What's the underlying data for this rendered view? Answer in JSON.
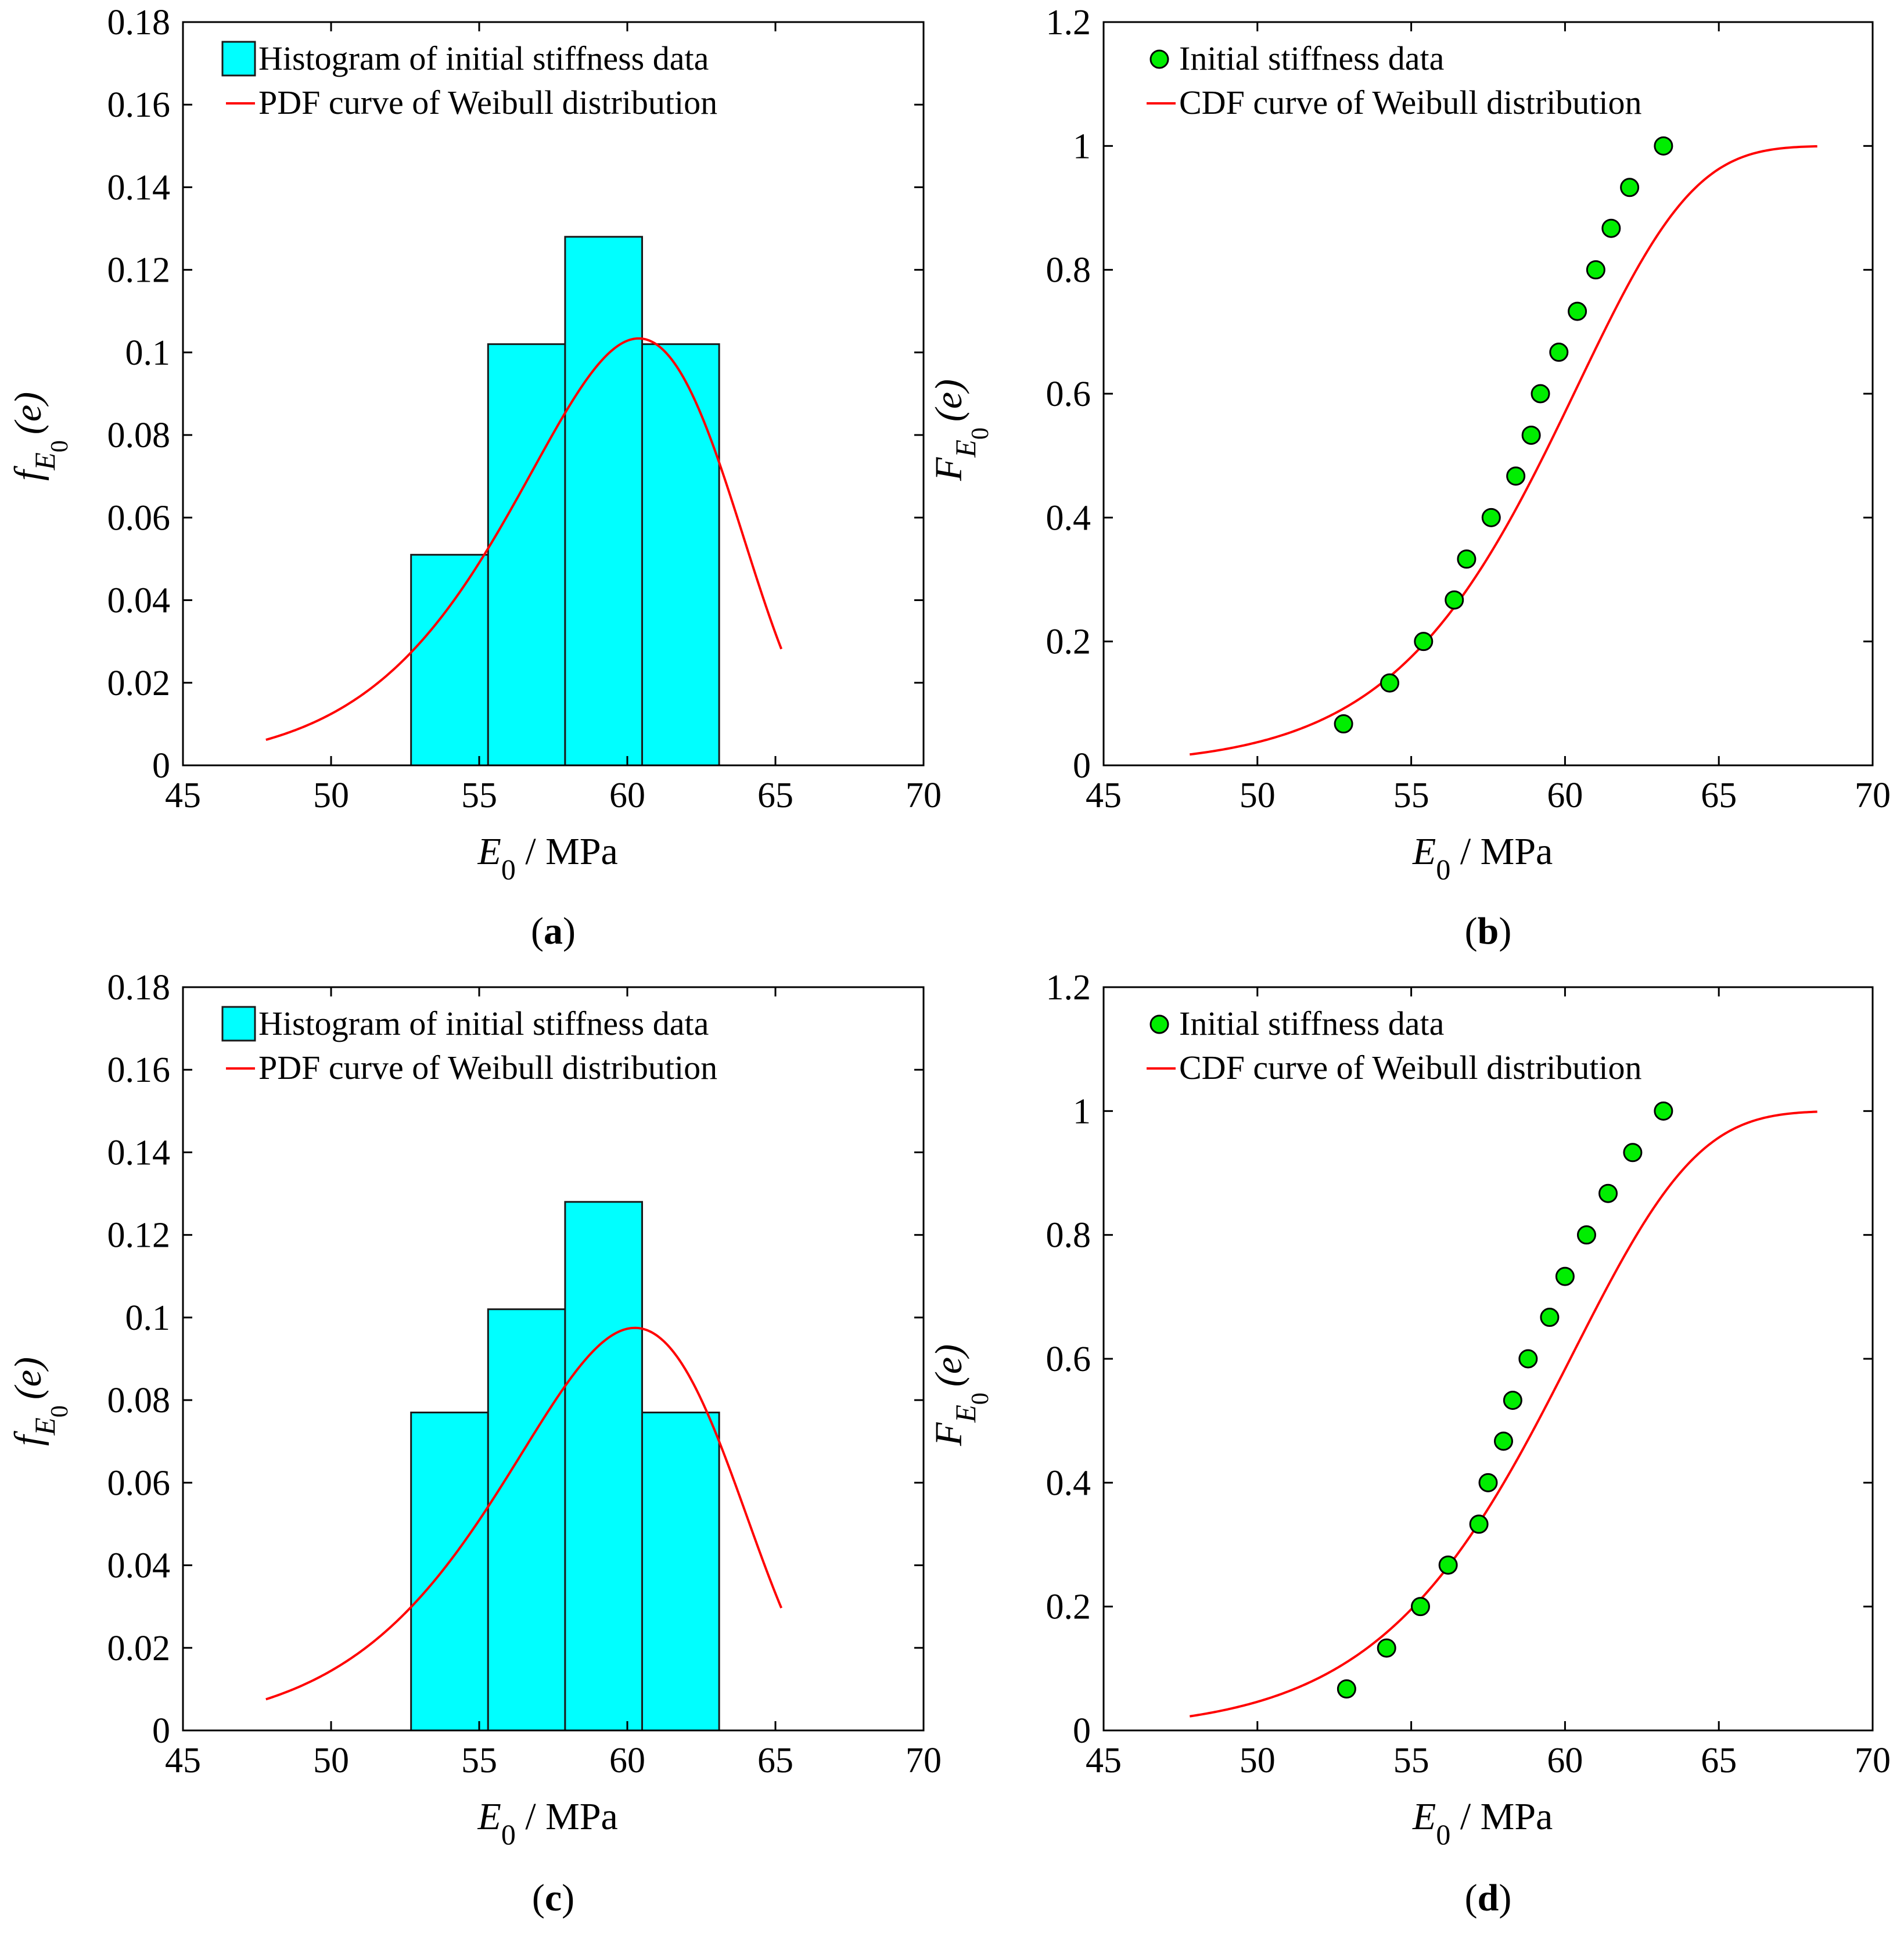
{
  "figure": {
    "labels": [
      "(a)",
      "(b)",
      "(c)",
      "(d)"
    ],
    "label_parts": [
      {
        "open": "(",
        "letter": "a",
        "close": ")"
      },
      {
        "open": "(",
        "letter": "b",
        "close": ")"
      },
      {
        "open": "(",
        "letter": "c",
        "close": ")"
      },
      {
        "open": "(",
        "letter": "d",
        "close": ")"
      }
    ]
  },
  "colors": {
    "bar_fill": "#00ffff",
    "bar_stroke": "#1a1a1a",
    "curve": "#ff0000",
    "marker_fill": "#00ee00",
    "marker_stroke": "#000000"
  },
  "chart_data": [
    {
      "id": "a",
      "type": "bar",
      "title": "",
      "xlabel": "E0 / MPa",
      "xlabel_main": "E",
      "xlabel_sub": "0",
      "xlabel_unit": " / MPa",
      "ylabel": "fE0(e)",
      "ylabel_main": "f",
      "ylabel_sub": "E",
      "ylabel_subsub": "0",
      "ylabel_arg": "(e)",
      "xlim": [
        45,
        70
      ],
      "ylim": [
        0,
        0.18
      ],
      "xticks": [
        45,
        50,
        55,
        60,
        65,
        70
      ],
      "xtick_labels": [
        "45",
        "50",
        "55",
        "60",
        "65",
        "70"
      ],
      "yticks": [
        0,
        0.02,
        0.04,
        0.06,
        0.08,
        0.1,
        0.12,
        0.14,
        0.16,
        0.18
      ],
      "ytick_labels": [
        "0",
        "0.02",
        "0.04",
        "0.06",
        "0.08",
        "0.1",
        "0.12",
        "0.14",
        "0.16",
        "0.18"
      ],
      "legend_position": "top-left",
      "legend": [
        "Histogram of initial stiffness data",
        "PDF curve of Weibull distribution"
      ],
      "bins": [
        {
          "left": 52.7,
          "right": 55.3,
          "value": 0.051
        },
        {
          "left": 55.3,
          "right": 57.9,
          "value": 0.102
        },
        {
          "left": 57.9,
          "right": 60.5,
          "value": 0.128
        },
        {
          "left": 60.5,
          "right": 63.1,
          "value": 0.102
        }
      ],
      "curve": {
        "name": "PDF curve of Weibull distribution",
        "kind": "pdf",
        "x_range": [
          47.8,
          65.2
        ],
        "scale": 60.6,
        "shape": 17.0,
        "y_scale": 1.0
      }
    },
    {
      "id": "b",
      "type": "scatter",
      "title": "",
      "xlabel": "E0 / MPa",
      "xlabel_main": "E",
      "xlabel_sub": "0",
      "xlabel_unit": " / MPa",
      "ylabel": "FE0(e)",
      "ylabel_main": "F",
      "ylabel_sub": "E",
      "ylabel_subsub": "0",
      "ylabel_arg": "(e)",
      "xlim": [
        45,
        70
      ],
      "ylim": [
        0,
        1.2
      ],
      "xticks": [
        45,
        50,
        55,
        60,
        65,
        70
      ],
      "xtick_labels": [
        "45",
        "50",
        "55",
        "60",
        "65",
        "70"
      ],
      "yticks": [
        0,
        0.2,
        0.4,
        0.6,
        0.8,
        1,
        1.2
      ],
      "ytick_labels": [
        "0",
        "0.2",
        "0.4",
        "0.6",
        "0.8",
        "1",
        "1.2"
      ],
      "legend_position": "top-left",
      "legend": [
        "Initial stiffness data",
        "CDF curve of Weibull distribution"
      ],
      "points": {
        "x": [
          52.8,
          54.3,
          55.4,
          56.4,
          56.8,
          57.6,
          58.4,
          58.9,
          59.2,
          59.8,
          60.4,
          61.0,
          61.5,
          62.1,
          63.2
        ],
        "y": [
          0.067,
          0.133,
          0.2,
          0.267,
          0.333,
          0.4,
          0.467,
          0.533,
          0.6,
          0.667,
          0.733,
          0.8,
          0.867,
          0.933,
          1.0
        ]
      },
      "curve": {
        "name": "CDF curve of Weibull distribution",
        "kind": "cdf",
        "x_range": [
          47.8,
          68.2
        ],
        "scale": 60.6,
        "shape": 17.0
      }
    },
    {
      "id": "c",
      "type": "bar",
      "title": "",
      "xlabel": "E0 / MPa",
      "xlabel_main": "E",
      "xlabel_sub": "0",
      "xlabel_unit": " / MPa",
      "ylabel": "fE0(e)",
      "ylabel_main": "f",
      "ylabel_sub": "E",
      "ylabel_subsub": "0",
      "ylabel_arg": "(e)",
      "xlim": [
        45,
        70
      ],
      "ylim": [
        0,
        0.18
      ],
      "xticks": [
        45,
        50,
        55,
        60,
        65,
        70
      ],
      "xtick_labels": [
        "45",
        "50",
        "55",
        "60",
        "65",
        "70"
      ],
      "yticks": [
        0,
        0.02,
        0.04,
        0.06,
        0.08,
        0.1,
        0.12,
        0.14,
        0.16,
        0.18
      ],
      "ytick_labels": [
        "0",
        "0.02",
        "0.04",
        "0.06",
        "0.08",
        "0.1",
        "0.12",
        "0.14",
        "0.16",
        "0.18"
      ],
      "legend_position": "top-left",
      "legend": [
        "Histogram of initial stiffness data",
        "PDF curve of Weibull distribution"
      ],
      "bins": [
        {
          "left": 52.7,
          "right": 55.3,
          "value": 0.077
        },
        {
          "left": 55.3,
          "right": 57.9,
          "value": 0.102
        },
        {
          "left": 57.9,
          "right": 60.5,
          "value": 0.128
        },
        {
          "left": 60.5,
          "right": 63.1,
          "value": 0.077
        }
      ],
      "curve": {
        "name": "PDF curve of Weibull distribution",
        "kind": "pdf",
        "x_range": [
          47.8,
          65.2
        ],
        "scale": 60.5,
        "shape": 16.0,
        "y_scale": 1.0
      }
    },
    {
      "id": "d",
      "type": "scatter",
      "title": "",
      "xlabel": "E0 / MPa",
      "xlabel_main": "E",
      "xlabel_sub": "0",
      "xlabel_unit": " / MPa",
      "ylabel": "FE0(e)",
      "ylabel_main": "F",
      "ylabel_sub": "E",
      "ylabel_subsub": "0",
      "ylabel_arg": "(e)",
      "xlim": [
        45,
        70
      ],
      "ylim": [
        0,
        1.2
      ],
      "xticks": [
        45,
        50,
        55,
        60,
        65,
        70
      ],
      "xtick_labels": [
        "45",
        "50",
        "55",
        "60",
        "65",
        "70"
      ],
      "yticks": [
        0,
        0.2,
        0.4,
        0.6,
        0.8,
        1,
        1.2
      ],
      "ytick_labels": [
        "0",
        "0.2",
        "0.4",
        "0.6",
        "0.8",
        "1",
        "1.2"
      ],
      "legend_position": "top-left",
      "legend": [
        "Initial stiffness data",
        "CDF curve of Weibull distribution"
      ],
      "points": {
        "x": [
          52.9,
          54.2,
          55.3,
          56.2,
          57.2,
          57.5,
          58.0,
          58.3,
          58.8,
          59.5,
          60.0,
          60.7,
          61.4,
          62.2,
          63.2
        ],
        "y": [
          0.067,
          0.133,
          0.2,
          0.267,
          0.333,
          0.4,
          0.467,
          0.533,
          0.6,
          0.667,
          0.733,
          0.8,
          0.867,
          0.933,
          1.0
        ]
      },
      "curve": {
        "name": "CDF curve of Weibull distribution",
        "kind": "cdf",
        "x_range": [
          47.8,
          68.2
        ],
        "scale": 60.5,
        "shape": 16.0
      }
    }
  ]
}
